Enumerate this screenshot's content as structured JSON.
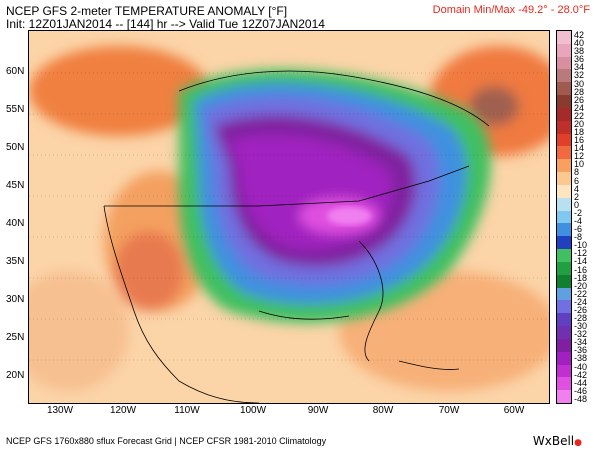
{
  "header": {
    "title": "NCEP GFS 2-meter TEMPERATURE ANOMALY [°F]",
    "subtitle": "Init: 12Z01JAN2014 -- [144] hr --> Valid Tue 12Z07JAN2014",
    "domain_minmax": "Domain Min/Max -49.2° - 28.0°F"
  },
  "footer": {
    "text": "NCEP GFS 1760x880 sflux Forecast Grid | NCEP CFSR 1981-2010 Climatology",
    "logo": "WxBell"
  },
  "map": {
    "lat_labels": [
      "60N",
      "55N",
      "50N",
      "45N",
      "40N",
      "35N",
      "30N",
      "25N",
      "20N"
    ],
    "lon_labels": [
      "130W",
      "120W",
      "110W",
      "100W",
      "90W",
      "80W",
      "70W",
      "60W"
    ]
  },
  "colorbar": {
    "labels": [
      "42",
      "38",
      "34",
      "30",
      "26",
      "22",
      "18",
      "14",
      "10",
      "6",
      "2",
      "-2",
      "-6",
      "-10",
      "-14",
      "-18",
      "-22",
      "-26",
      "-30",
      "-34",
      "-38",
      "-42",
      "-46"
    ],
    "labels2": [
      "40",
      "36",
      "32",
      "28",
      "24",
      "20",
      "16",
      "12",
      "8",
      "4",
      "0",
      "-4",
      "-8",
      "-12",
      "-16",
      "-20",
      "-24",
      "-28",
      "-32",
      "-36",
      "-40",
      "-44",
      "-48"
    ],
    "colors": [
      "#f2bfd0",
      "#e8a5bb",
      "#d98fa0",
      "#b87a7a",
      "#a05a50",
      "#8a3b30",
      "#a52a2a",
      "#c0302a",
      "#e0402a",
      "#f06a40",
      "#f7a060",
      "#fbc890",
      "#fde5c0",
      "#b8e0f0",
      "#80c8f0",
      "#4090e0",
      "#2040c0",
      "#40c060",
      "#20a040",
      "#108030",
      "#60a0e0",
      "#7070e0",
      "#6040c0",
      "#7030b0",
      "#8020a0",
      "#a020c0",
      "#c030d0",
      "#e050e0",
      "#f080f0"
    ]
  }
}
